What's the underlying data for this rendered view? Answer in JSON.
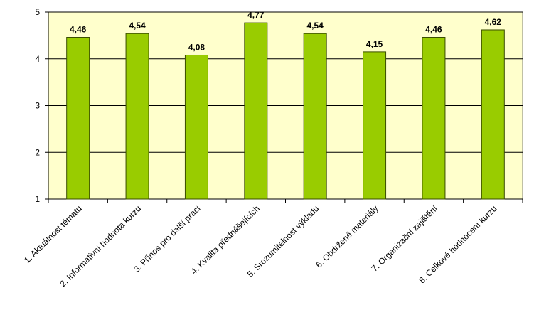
{
  "chart_data": {
    "type": "bar",
    "categories": [
      "1. Aktuálnost tématu",
      "2. Informativní hodnota kurzu",
      "3. Přínos pro další práci",
      "4. Kvalita přednášejících",
      "5. Srozumitelnost výkladu",
      "6. Obdržené materiály",
      "7. Organizační zajištění",
      "8. Celkové hodnocení kurzu"
    ],
    "values": [
      4.46,
      4.54,
      4.08,
      4.77,
      4.54,
      4.15,
      4.46,
      4.62
    ],
    "value_labels": [
      "4,46",
      "4,54",
      "4,08",
      "4,77",
      "4,54",
      "4,15",
      "4,46",
      "4,62"
    ],
    "color": "#99cc00",
    "ylim": [
      1,
      5
    ],
    "yticks": [
      1,
      2,
      3,
      4,
      5
    ],
    "grid": true
  }
}
